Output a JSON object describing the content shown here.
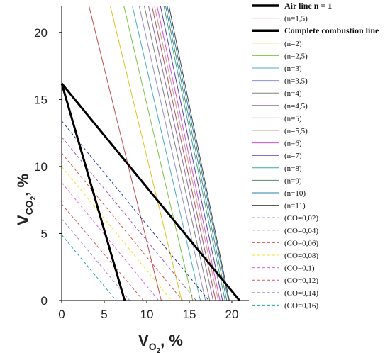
{
  "chart_data": {
    "type": "line",
    "x_axis": {
      "label_main": "V",
      "label_sub": "O",
      "label_subsub": "2",
      "label_tail": ", %",
      "min": 0,
      "max": 22,
      "ticks": [
        0,
        5,
        10,
        15,
        20
      ]
    },
    "y_axis": {
      "label_main": "V",
      "label_sub": "CO",
      "label_subsub": "2",
      "label_tail": ", %",
      "min": 0,
      "max": 22,
      "ticks": [
        0,
        5,
        10,
        15,
        20
      ]
    },
    "grid": false,
    "legend_position": "right",
    "series": [
      {
        "name": "Air line n = 1",
        "color": "#000000",
        "width": 3,
        "dash": "solid",
        "bold": true,
        "points": [
          [
            0,
            16.2
          ],
          [
            7.4,
            0
          ]
        ]
      },
      {
        "name": "(n=1,5)",
        "color": "#c0504d",
        "width": 1,
        "dash": "solid",
        "points": [
          [
            3.2,
            22
          ],
          [
            11.7,
            0
          ]
        ]
      },
      {
        "name": "Complete combustion line",
        "color": "#000000",
        "width": 3,
        "dash": "solid",
        "bold": true,
        "points": [
          [
            0,
            16.2
          ],
          [
            20.9,
            0
          ]
        ]
      },
      {
        "name": "(n=2)",
        "color": "#e3c21a",
        "width": 1,
        "dash": "solid",
        "points": [
          [
            5.7,
            22
          ],
          [
            14.1,
            0
          ]
        ]
      },
      {
        "name": "(n=2,5)",
        "color": "#7dc242",
        "width": 1,
        "dash": "solid",
        "points": [
          [
            7.3,
            22
          ],
          [
            15.4,
            0
          ]
        ]
      },
      {
        "name": "(n=3)",
        "color": "#4aacc6",
        "width": 1,
        "dash": "solid",
        "points": [
          [
            8.3,
            22
          ],
          [
            16.3,
            0
          ]
        ]
      },
      {
        "name": "(n=3,5)",
        "color": "#8e8fd6",
        "width": 1,
        "dash": "solid",
        "points": [
          [
            9.1,
            22
          ],
          [
            16.9,
            0
          ]
        ]
      },
      {
        "name": "(n=4)",
        "color": "#808080",
        "width": 1,
        "dash": "solid",
        "points": [
          [
            9.7,
            22
          ],
          [
            17.4,
            0
          ]
        ]
      },
      {
        "name": "(n=4,5)",
        "color": "#8b6f9c",
        "width": 1,
        "dash": "solid",
        "points": [
          [
            10.2,
            22
          ],
          [
            17.8,
            0
          ]
        ]
      },
      {
        "name": "(n=5)",
        "color": "#b5505c",
        "width": 1,
        "dash": "solid",
        "points": [
          [
            10.6,
            22
          ],
          [
            18.1,
            0
          ]
        ]
      },
      {
        "name": "(n=5,5)",
        "color": "#c69b8a",
        "width": 1,
        "dash": "solid",
        "points": [
          [
            10.9,
            22
          ],
          [
            18.4,
            0
          ]
        ]
      },
      {
        "name": "(n=6)",
        "color": "#d84fd1",
        "width": 1,
        "dash": "solid",
        "points": [
          [
            11.2,
            22
          ],
          [
            18.6,
            0
          ]
        ]
      },
      {
        "name": "(n=7)",
        "color": "#5b3fb8",
        "width": 1,
        "dash": "solid",
        "points": [
          [
            11.6,
            22
          ],
          [
            18.9,
            0
          ]
        ]
      },
      {
        "name": "(n=8)",
        "color": "#3aa8a0",
        "width": 1,
        "dash": "solid",
        "points": [
          [
            12.0,
            22
          ],
          [
            19.2,
            0
          ]
        ]
      },
      {
        "name": "(n=9)",
        "color": "#5a8a6a",
        "width": 1,
        "dash": "solid",
        "points": [
          [
            12.2,
            22
          ],
          [
            19.4,
            0
          ]
        ]
      },
      {
        "name": "(n=10)",
        "color": "#2a7fb0",
        "width": 1,
        "dash": "solid",
        "points": [
          [
            12.4,
            22
          ],
          [
            19.6,
            0
          ]
        ]
      },
      {
        "name": "(n=11)",
        "color": "#444444",
        "width": 1,
        "dash": "solid",
        "points": [
          [
            12.6,
            22
          ],
          [
            19.7,
            0
          ]
        ]
      },
      {
        "name": "(CO=0,02)",
        "color": "#1f3f8f",
        "width": 1,
        "dash": "4,3",
        "points": [
          [
            0,
            13.4
          ],
          [
            17.3,
            0
          ]
        ]
      },
      {
        "name": "(CO=0,04)",
        "color": "#9b59b6",
        "width": 1,
        "dash": "4,3",
        "points": [
          [
            0,
            12.2
          ],
          [
            15.8,
            0
          ]
        ]
      },
      {
        "name": "(CO=0,06)",
        "color": "#d9534f",
        "width": 1,
        "dash": "4,3",
        "points": [
          [
            0,
            11.0
          ],
          [
            14.2,
            0
          ]
        ]
      },
      {
        "name": "(CO=0,08)",
        "color": "#f2e22a",
        "width": 1,
        "dash": "4,3",
        "points": [
          [
            0,
            10.0
          ],
          [
            12.9,
            0
          ]
        ]
      },
      {
        "name": "(CO=0,1)",
        "color": "#e36ad2",
        "width": 1,
        "dash": "4,3",
        "points": [
          [
            0,
            8.8
          ],
          [
            11.4,
            0
          ]
        ]
      },
      {
        "name": "(CO=0,12)",
        "color": "#d45a6a",
        "width": 1,
        "dash": "4,3",
        "points": [
          [
            0,
            7.2
          ],
          [
            9.6,
            0
          ]
        ]
      },
      {
        "name": "(CO=0,14)",
        "color": "#a98bd0",
        "width": 1,
        "dash": "4,3",
        "points": [
          [
            0,
            6.1
          ],
          [
            8.0,
            0
          ]
        ]
      },
      {
        "name": "(CO=0,16)",
        "color": "#2aa6a0",
        "width": 1,
        "dash": "4,3",
        "points": [
          [
            0,
            4.9
          ],
          [
            6.4,
            0
          ]
        ]
      }
    ]
  }
}
